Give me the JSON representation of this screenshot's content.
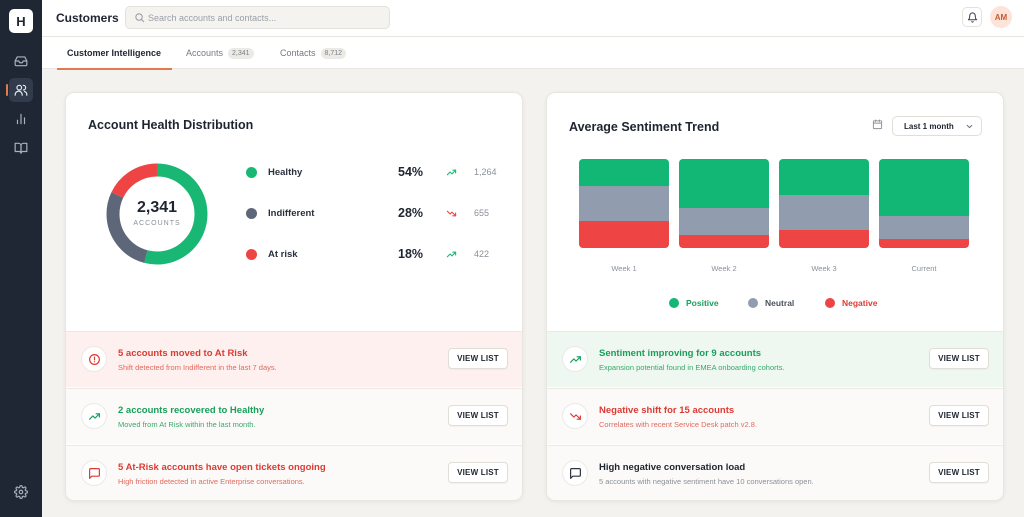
{
  "app": {
    "logo_letter": "H",
    "page_title": "Customers"
  },
  "sidebar": {
    "items": [
      {
        "name": "inbox",
        "icon": "inbox-icon",
        "active": false
      },
      {
        "name": "customers",
        "icon": "users-icon",
        "active": true
      },
      {
        "name": "reports",
        "icon": "bar-chart-icon",
        "active": false
      },
      {
        "name": "knowledge",
        "icon": "book-icon",
        "active": false
      },
      {
        "name": "settings",
        "icon": "gear-icon",
        "active": false
      }
    ]
  },
  "header": {
    "search_placeholder": "Search accounts and contacts...",
    "avatar_initials": "AM"
  },
  "tabs": [
    {
      "label": "Customer Intelligence",
      "count": "",
      "active": true
    },
    {
      "label": "Accounts",
      "count": "2,341",
      "active": false
    },
    {
      "label": "Contacts",
      "count": "8,712",
      "active": false
    }
  ],
  "health": {
    "title": "Account Health Distribution",
    "total": "2,341",
    "total_label": "ACCOUNTS",
    "segments": [
      {
        "label": "Healthy",
        "percent": "54%",
        "value": 54,
        "count": "1,264",
        "trend": "up",
        "color": "#19b774"
      },
      {
        "label": "Indifferent",
        "percent": "28%",
        "value": 28,
        "count": "655",
        "trend": "down",
        "color": "#5d6779"
      },
      {
        "label": "At risk",
        "percent": "18%",
        "value": 18,
        "count": "422",
        "trend": "up",
        "color": "#ee4444"
      }
    ],
    "alerts": [
      {
        "title": "5 accounts moved to At Risk",
        "subtitle": "Shift detected from Indifferent in the last 7 days.",
        "button": "VIEW LIST",
        "tone": "red",
        "icon": "alert-circle-icon"
      },
      {
        "title": "2 accounts recovered to Healthy",
        "subtitle": "Moved from At Risk within the last month.",
        "button": "VIEW LIST",
        "tone": "green",
        "icon": "trending-up-icon"
      },
      {
        "title": "5 At-Risk accounts have open tickets ongoing",
        "subtitle": "High friction detected in active Enterprise conversations.",
        "button": "VIEW LIST",
        "tone": "red-plain",
        "icon": "chat-icon"
      }
    ]
  },
  "sentiment": {
    "title": "Average Sentiment Trend",
    "range_label": "Last 1 month",
    "legend": [
      {
        "label": "Positive",
        "color": "#12b776"
      },
      {
        "label": "Neutral",
        "color": "#929caf"
      },
      {
        "label": "Negative",
        "color": "#ee4444"
      }
    ],
    "alerts": [
      {
        "title": "Sentiment improving for 9 accounts",
        "subtitle": "Expansion potential found in EMEA onboarding cohorts.",
        "button": "VIEW LIST",
        "tone": "green",
        "icon": "trending-up-icon"
      },
      {
        "title": "Negative shift for 15 accounts",
        "subtitle": "Correlates with recent Service Desk patch v2.8.",
        "button": "VIEW LIST",
        "tone": "red-plain",
        "icon": "trending-down-icon"
      },
      {
        "title": "High negative conversation load",
        "subtitle": "5 accounts with negative sentiment have 10 conversations open.",
        "button": "VIEW LIST",
        "tone": "plain",
        "icon": "chat-icon"
      }
    ]
  },
  "chart_data": {
    "type": "bar",
    "stacked": true,
    "normalized": true,
    "categories": [
      "Week 1",
      "Week 2",
      "Week 3",
      "Current"
    ],
    "series": [
      {
        "name": "Positive",
        "values": [
          30,
          55,
          40,
          64
        ]
      },
      {
        "name": "Neutral",
        "values": [
          40,
          30,
          40,
          26
        ]
      },
      {
        "name": "Negative",
        "values": [
          30,
          15,
          20,
          10
        ]
      }
    ],
    "legend_position": "bottom"
  }
}
